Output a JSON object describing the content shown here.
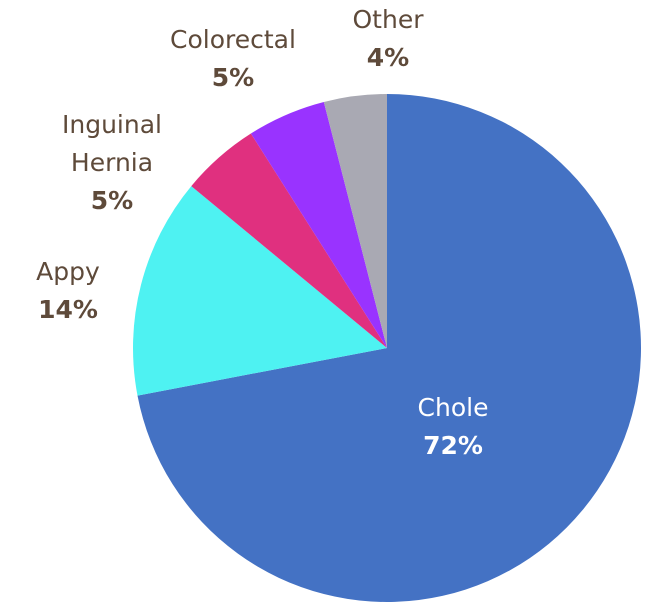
{
  "chart_data": {
    "type": "pie",
    "categories": [
      "Chole",
      "Appy",
      "Inguinal Hernia",
      "Colorectal",
      "Other"
    ],
    "values": [
      72,
      14,
      5,
      5,
      4
    ],
    "value_labels": [
      "72%",
      "14%",
      "5%",
      "5%",
      "4%"
    ],
    "colors": [
      "#4472c4",
      "#4ef2f2",
      "#e0307f",
      "#9933ff",
      "#a9a9b3"
    ]
  }
}
